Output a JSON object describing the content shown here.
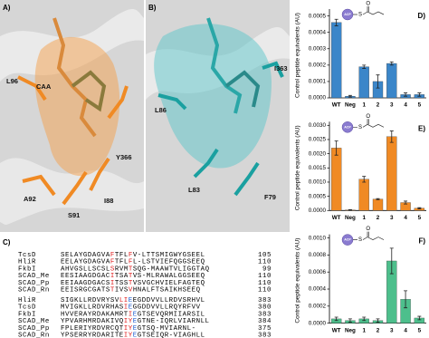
{
  "panels": [
    {
      "label": "A)",
      "residues": [
        "CAA",
        "L96",
        "Y366",
        "A92",
        "S91",
        "I88"
      ]
    },
    {
      "label": "B)",
      "residues": [
        "I363",
        "L86",
        "L83",
        "F79"
      ]
    }
  ],
  "alignment": {
    "label": "C)",
    "blocks": [
      [
        {
          "name": "TcsD",
          "seq": [
            "SELAYGDAGVA",
            {
              "text": "F",
              "color": "#e02020"
            },
            "TFL",
            {
              "text": "F",
              "color": "#e02020"
            },
            "V-LTTSMIGWYGSEEL"
          ],
          "end": "105"
        },
        {
          "name": "HliR",
          "seq": [
            "EELAYGDAGVA",
            {
              "text": "F",
              "color": "#e02020"
            },
            "TFL",
            {
              "text": "F",
              "color": "#e02020"
            },
            "L-LSTVIEFQGGSEEQ"
          ],
          "end": "110"
        },
        {
          "name": "FkbI",
          "seq": [
            "AHVGSLLSCSL",
            {
              "text": "S",
              "color": "#e02020"
            },
            "RVM",
            {
              "text": "T",
              "color": "#e02020"
            },
            "SQG-MAAWTVLIGGTAQ"
          ],
          "end": "99"
        },
        {
          "name": "SCAD_Me",
          "seq": [
            "EESIAAGDGAC",
            {
              "text": "I",
              "color": "#e02020"
            },
            "TSA",
            {
              "text": "T",
              "color": "#e02020"
            },
            "VS-MLRAWALGGSEEQ"
          ],
          "end": "110"
        },
        {
          "name": "SCAD_Pp",
          "seq": [
            "EEIAAGDGACS",
            {
              "text": "I",
              "color": "#e02020"
            },
            "TSS",
            {
              "text": "T",
              "color": "#e02020"
            },
            "VSVGCHVIELFAGTEQ"
          ],
          "end": "110"
        },
        {
          "name": "SCAD_Rn",
          "seq": [
            "EEISRGCGATS",
            {
              "text": "T",
              "color": "#e02020"
            },
            "IVS",
            {
              "text": "V",
              "color": "#e02020"
            },
            "HNALFTSAIKHSEEQ"
          ],
          "end": "110"
        }
      ],
      [
        {
          "name": "HliR",
          "seq": [
            "SIGKLLRDVRYSV",
            {
              "text": "LI",
              "color": "#e02020"
            },
            {
              "text": "E",
              "color": "#2060d0"
            },
            "EGDDVVLLRDVSRHVL"
          ],
          "end": "383"
        },
        {
          "name": "TcsD",
          "seq": [
            "MVIGKLLRDVRHAS",
            {
              "text": "I",
              "color": "#e02020"
            },
            {
              "text": "E",
              "color": "#2060d0"
            },
            "GGDDVVLLRQYRFVV"
          ],
          "end": "380"
        },
        {
          "name": "FkbI",
          "seq": [
            "HVVERAYRDAKAMRT",
            {
              "text": "I",
              "color": "#e02020"
            },
            {
              "text": "E",
              "color": "#2060d0"
            },
            "GTSEVQRMIIARSIL"
          ],
          "end": "383"
        },
        {
          "name": "SCAD_Me",
          "seq": [
            "YPVARHMRDAKIVQ",
            {
              "text": "IY",
              "color": "#e02020"
            },
            {
              "text": "E",
              "color": "#2060d0"
            },
            "GTNE-IQRLVIARNLL"
          ],
          "end": "384"
        },
        {
          "name": "SCAD_Pp",
          "seq": [
            "FPLERIYRDVRCQT",
            {
              "text": "IY",
              "color": "#e02020"
            },
            {
              "text": "E",
              "color": "#2060d0"
            },
            "GTSQ-MVIARNL-"
          ],
          "end": "375"
        },
        {
          "name": "SCAD_Rn",
          "seq": [
            "YPSERRYRDARITE",
            {
              "text": "IY",
              "color": "#e02020"
            },
            {
              "text": "E",
              "color": "#2060d0"
            },
            "GTSEIQR-VIAGHLL"
          ],
          "end": "383"
        }
      ]
    ]
  },
  "chart_data": [
    {
      "type": "bar",
      "label": "D)",
      "ylabel": "Control peptide equivalents (AU)",
      "icon": {
        "acp": "ACP",
        "s": "S",
        "o": "O"
      },
      "categories": [
        "WT",
        "Neg",
        "1",
        "2",
        "3",
        "4",
        "5"
      ],
      "series": [
        {
          "color": "#3b86c9",
          "values": [
            0.00046,
            1e-05,
            0.00019,
            0.0001,
            0.00021,
            2e-05,
            2e-05
          ],
          "errors": [
            2e-05,
            5e-06,
            1e-05,
            4e-05,
            1e-05,
            1e-05,
            1e-05
          ]
        }
      ],
      "ylim": [
        0,
        0.00052
      ],
      "yticks": [
        {
          "value": 0,
          "label": "0.0000"
        },
        0.0001,
        0.0002,
        0.0003,
        0.0004,
        0.0005
      ]
    },
    {
      "type": "bar",
      "label": "E)",
      "ylabel": "Control peptide equivalents (AU)",
      "icon": {
        "acp": "ACP",
        "s": "S",
        "o": "O"
      },
      "categories": [
        "WT",
        "Neg",
        "1",
        "2",
        "3",
        "4",
        "5"
      ],
      "series": [
        {
          "color": "#f08a24",
          "values": [
            0.0022,
            2e-05,
            0.0011,
            0.0004,
            0.0026,
            0.00028,
            8e-05
          ],
          "errors": [
            0.00025,
            1e-05,
            0.0001,
            2e-05,
            0.0002,
            5e-05,
            2e-05
          ]
        }
      ],
      "ylim": [
        0,
        0.003
      ],
      "yticks": [
        {
          "value": 0,
          "label": "0.0000"
        },
        0.0005,
        {
          "value": 0.001,
          "label": "0.0010"
        },
        0.0015,
        {
          "value": 0.002,
          "label": "0.0020"
        },
        0.0025,
        {
          "value": 0.003,
          "label": "0.0030"
        }
      ]
    },
    {
      "type": "bar",
      "label": "F)",
      "ylabel": "Control peptide equivalents (AU)",
      "icon": {
        "acp": "ACP",
        "s": "S",
        "o": "O"
      },
      "categories": [
        "WT",
        "Neg",
        "1",
        "2",
        "3",
        "4",
        "5"
      ],
      "series": [
        {
          "color": "#4dbf8c",
          "values": [
            5e-05,
            3e-05,
            5e-05,
            3e-05,
            0.00073,
            0.00028,
            6e-05
          ],
          "errors": [
            2e-05,
            2e-05,
            2e-05,
            2e-05,
            0.00015,
            0.0001,
            2e-05
          ]
        }
      ],
      "ylim": [
        0,
        0.001
      ],
      "yticks": [
        {
          "value": 0,
          "label": "0.0000"
        },
        0.0002,
        0.0004,
        0.0006,
        0.0008,
        {
          "value": 0.001,
          "label": "0.0010"
        }
      ]
    }
  ]
}
